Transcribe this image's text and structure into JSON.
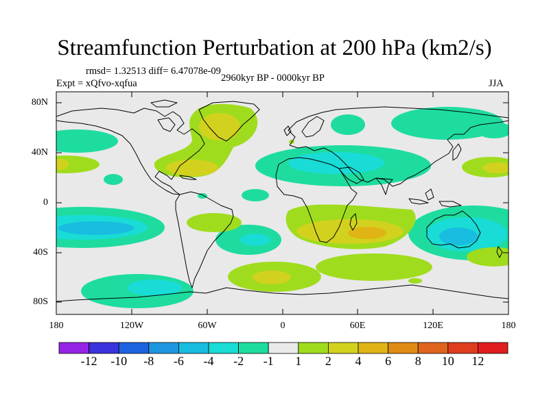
{
  "title": "Streamfunction Perturbation at 200 hPa (km2/s)",
  "stats": {
    "rmsd_line": "rmsd= 1.32513 diff= 6.47078e-09"
  },
  "experiment": "Expt = xQfvo-xqfua",
  "period": "2960kyr BP - 0000kyr BP",
  "season": "JJA",
  "map": {
    "background_color": "#e9e9e9",
    "lat_labels": [
      "80N",
      "40N",
      "0",
      "40S",
      "80S"
    ],
    "lon_labels": [
      "180",
      "120W",
      "60W",
      "0",
      "60E",
      "120E",
      "180"
    ]
  },
  "colorbar": {
    "labels": [
      "-12",
      "-10",
      "-8",
      "-6",
      "-4",
      "-2",
      "-1",
      "1",
      "2",
      "4",
      "6",
      "8",
      "10",
      "12"
    ],
    "colors": [
      "#9624e6",
      "#3b33dd",
      "#1e64e0",
      "#1e96e0",
      "#19bde0",
      "#19dcd6",
      "#1edca0",
      "#e9e9e9",
      "#a0dc1e",
      "#d2d21e",
      "#e0b414",
      "#e08c14",
      "#e0641e",
      "#e03c1e",
      "#e01e1e"
    ]
  }
}
